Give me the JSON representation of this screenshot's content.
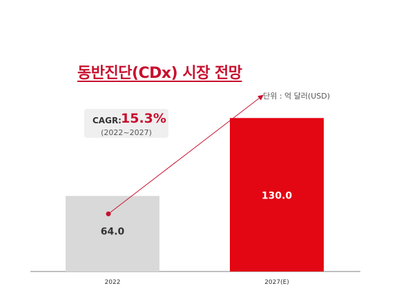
{
  "title": "동반진단(CDx) 시장 전망",
  "unit_note": "단위 : 억 달러(USD)",
  "cagr": {
    "label": "CAGR:",
    "value": "15.3%",
    "period": "(2022~2027)"
  },
  "colors": {
    "accent": "#c8102e",
    "bar_2022": "#d9d9d9",
    "bar_2027": "#e30613",
    "axis": "#7f7f7f"
  },
  "chart_data": {
    "type": "bar",
    "categories": [
      "2022",
      "2027(E)"
    ],
    "values": [
      64.0,
      130.0
    ],
    "value_labels": [
      "64.0",
      "130.0"
    ],
    "title": "동반진단(CDx) 시장 전망",
    "xlabel": "",
    "ylabel": "",
    "ylim": [
      0,
      150
    ],
    "grid": false,
    "legend": "none",
    "annotation": "CAGR: 15.3% (2022~2027)"
  }
}
